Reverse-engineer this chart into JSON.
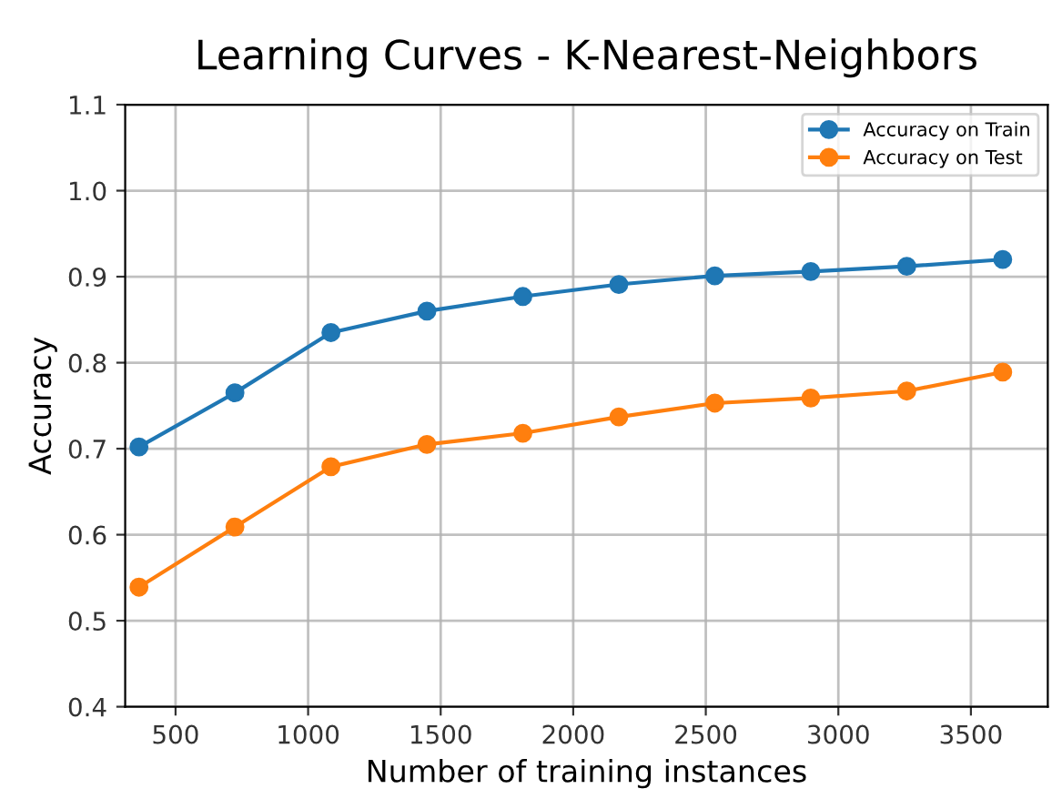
{
  "chart_data": {
    "type": "line",
    "title": "Learning Curves - K-Nearest-Neighbors",
    "xlabel": "Number of training instances",
    "ylabel": "Accuracy",
    "x": [
      362,
      724,
      1086,
      1448,
      1810,
      2172,
      2534,
      2896,
      3258,
      3620
    ],
    "series": [
      {
        "name": "Accuracy on Train",
        "color": "#1f77b4",
        "values": [
          0.702,
          0.765,
          0.835,
          0.86,
          0.877,
          0.891,
          0.901,
          0.906,
          0.912,
          0.92
        ]
      },
      {
        "name": "Accuracy on Test",
        "color": "#ff7f0e",
        "values": [
          0.539,
          0.609,
          0.679,
          0.705,
          0.718,
          0.737,
          0.753,
          0.759,
          0.767,
          0.789
        ]
      }
    ],
    "xlim": [
      310,
      3790
    ],
    "xticks": [
      500,
      1000,
      1500,
      2000,
      2500,
      3000,
      3500
    ],
    "ylim": [
      0.4,
      1.1
    ],
    "yticks": [
      0.4,
      0.5,
      0.6,
      0.7,
      0.8,
      0.9,
      {
        "value": 1.0,
        "label": "1.0"
      },
      1.1
    ],
    "grid": true,
    "legend": "top right",
    "marker": "circle",
    "line_style": "solid"
  }
}
